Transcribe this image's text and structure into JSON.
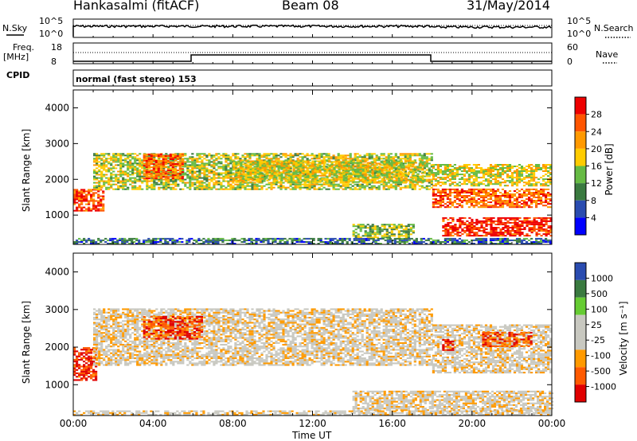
{
  "header": {
    "station": "Hankasalmi (fitACF)",
    "beam": "Beam 08",
    "date": "31/May/2014"
  },
  "status_panel": {
    "nsky_label": "N.Sky",
    "nsearch_label": "N.Search",
    "nsky_ticks": [
      "10^5",
      "10^0"
    ],
    "nsearch_ticks": [
      "10^5",
      "10^0"
    ],
    "freq_label": "Freq.",
    "freq_unit": "[MHz]",
    "freq_ticks": [
      "18",
      "8"
    ],
    "nave_label": "Nave",
    "nave_ticks": [
      "60",
      "0"
    ],
    "cpid_label": "CPID",
    "cpid_value": "normal (fast stereo) 153"
  },
  "colors": {
    "power": [
      "#0000ff",
      "#2a4cb0",
      "#3a7a40",
      "#66bb44",
      "#ffcc00",
      "#ff9900",
      "#ff5500",
      "#ee0000"
    ],
    "velocity": [
      "#e00000",
      "#ff5a00",
      "#ff9a00",
      "#c8c8c0",
      "#c8c8c0",
      "#66cc33",
      "#3a7a40",
      "#2a4cb0"
    ]
  },
  "chart_data": [
    {
      "type": "heatmap",
      "title": "",
      "ylabel": "Slant Range [km]",
      "xlabel": "",
      "x_range_hours": [
        0,
        24
      ],
      "ylim": [
        180,
        4500
      ],
      "y_ticks": [
        1000,
        2000,
        3000,
        4000
      ],
      "colorbar": {
        "label": "Power [dB]",
        "ticks": [
          4,
          8,
          12,
          16,
          20,
          24,
          28
        ]
      },
      "echo_bands": [
        {
          "t0": 0.0,
          "t1": 1.5,
          "r0": 1100,
          "r1": 1700,
          "level": 0.85
        },
        {
          "t0": 1.0,
          "t1": 18.0,
          "r0": 1700,
          "r1": 2700,
          "level": 0.5
        },
        {
          "t0": 3.5,
          "t1": 5.5,
          "r0": 2000,
          "r1": 2700,
          "level": 0.8
        },
        {
          "t0": 8.0,
          "t1": 17.5,
          "r0": 1900,
          "r1": 2500,
          "level": 0.55
        },
        {
          "t0": 18.0,
          "t1": 24.0,
          "r0": 1200,
          "r1": 1700,
          "level": 0.8
        },
        {
          "t0": 18.0,
          "t1": 24.0,
          "r0": 1800,
          "r1": 2400,
          "level": 0.55
        },
        {
          "t0": 18.5,
          "t1": 24.0,
          "r0": 400,
          "r1": 900,
          "level": 0.9
        },
        {
          "t0": 14.0,
          "t1": 17.0,
          "r0": 350,
          "r1": 750,
          "level": 0.45
        },
        {
          "t0": 0.0,
          "t1": 24.0,
          "r0": 180,
          "r1": 350,
          "level": 0.25
        }
      ]
    },
    {
      "type": "heatmap",
      "title": "",
      "ylabel": "Slant Range [km]",
      "xlabel": "Time UT",
      "x_range_hours": [
        0,
        24
      ],
      "x_ticks": [
        "00:00",
        "04:00",
        "08:00",
        "12:00",
        "16:00",
        "20:00",
        "00:00"
      ],
      "ylim": [
        180,
        4500
      ],
      "y_ticks": [
        1000,
        2000,
        3000,
        4000
      ],
      "colorbar": {
        "label": "Velocity [m s⁻¹]",
        "ticks": [
          "1000",
          "500",
          "100",
          "25",
          "-25",
          "-100",
          "-500",
          "-1000"
        ]
      },
      "echo_bands": [
        {
          "t0": 0.0,
          "t1": 1.2,
          "r0": 1100,
          "r1": 2000,
          "level": 0.1
        },
        {
          "t0": 1.0,
          "t1": 18.0,
          "r0": 1500,
          "r1": 3000,
          "level": 0.45
        },
        {
          "t0": 3.5,
          "t1": 6.5,
          "r0": 2200,
          "r1": 2800,
          "level": 0.15
        },
        {
          "t0": 18.0,
          "t1": 24.0,
          "r0": 1300,
          "r1": 2600,
          "level": 0.45
        },
        {
          "t0": 18.5,
          "t1": 19.0,
          "r0": 1900,
          "r1": 2200,
          "level": 0.12
        },
        {
          "t0": 20.5,
          "t1": 23.0,
          "r0": 2000,
          "r1": 2400,
          "level": 0.18
        },
        {
          "t0": 14.0,
          "t1": 24.0,
          "r0": 300,
          "r1": 800,
          "level": 0.45
        },
        {
          "t0": 0.0,
          "t1": 24.0,
          "r0": 180,
          "r1": 300,
          "level": 0.45
        }
      ]
    }
  ]
}
